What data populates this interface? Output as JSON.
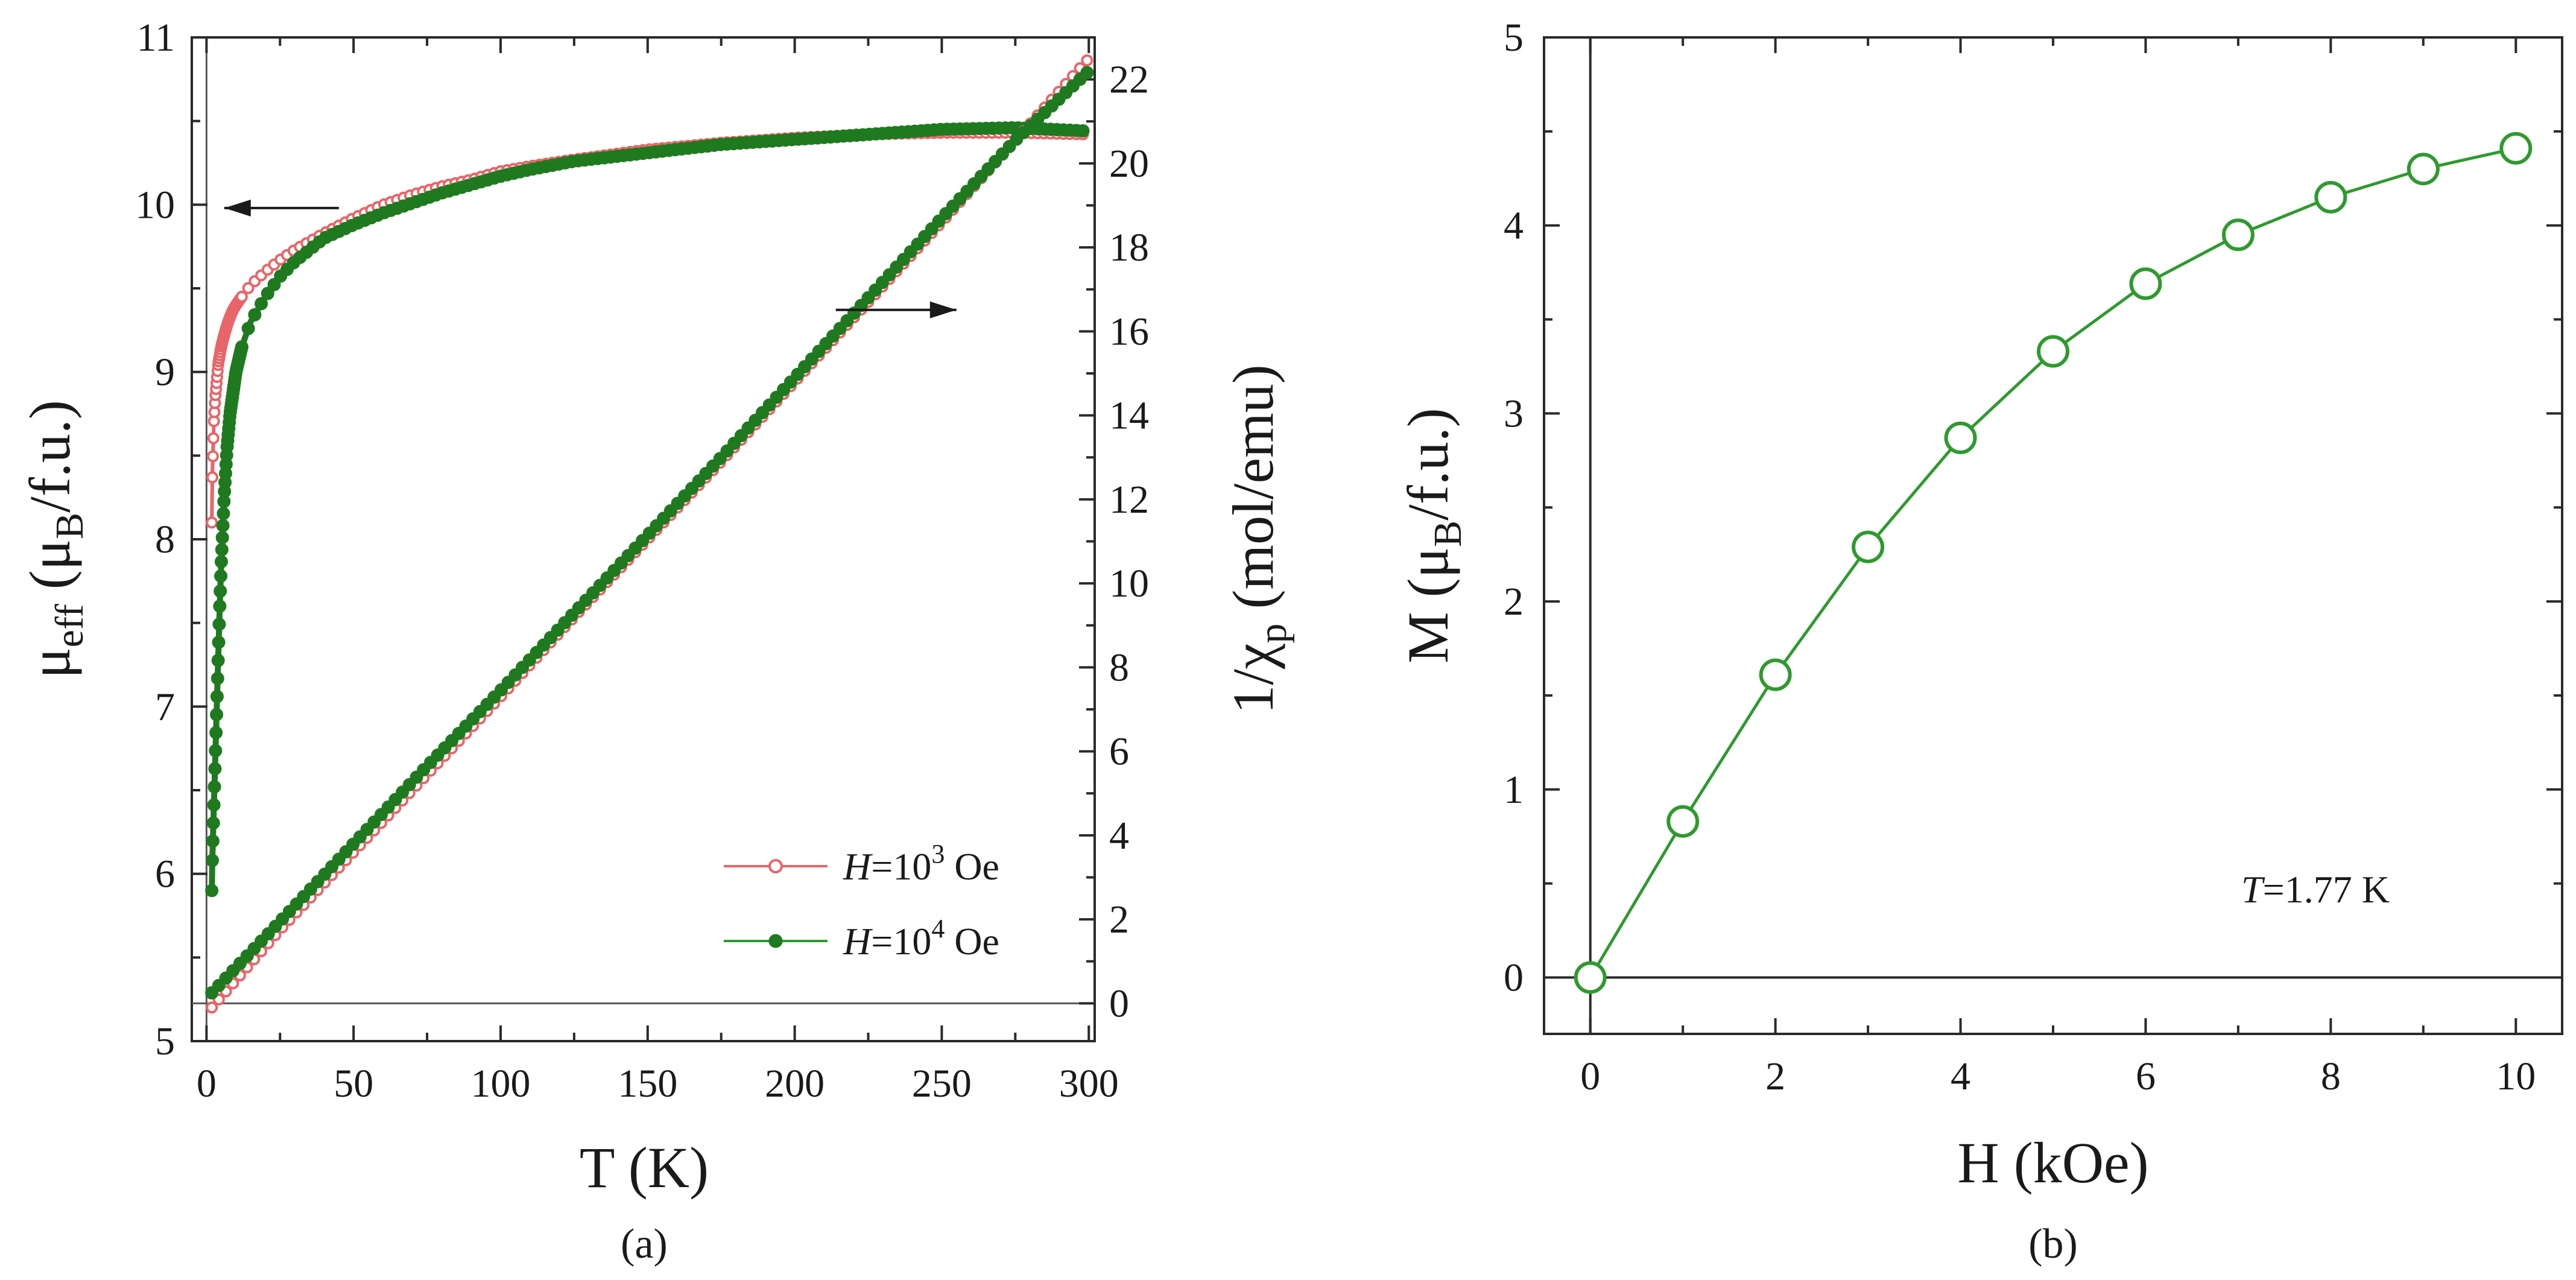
{
  "colors": {
    "axis": "#2a2a2a",
    "red_series": "#e8656a",
    "green_dark": "#1f7a1f",
    "green_light": "#2e9a2e"
  },
  "chart_data": [
    {
      "id": "a",
      "type": "scatter",
      "panel_label": "(a)",
      "xlabel": "T (K)",
      "ylabel_left": {
        "main": "μ",
        "sub": "eff",
        "rest_open": "  (μ",
        "rest_sub": "B",
        "rest_close": "/f.u.)"
      },
      "ylabel_right": {
        "main": "1/χ",
        "sub": "p",
        "rest": " (mol/emu)"
      },
      "xlim": [
        -5,
        302
      ],
      "xticks": [
        0,
        50,
        100,
        150,
        200,
        250,
        300
      ],
      "ylim_left": [
        5,
        11
      ],
      "yticks_left": [
        5,
        6,
        7,
        8,
        9,
        10,
        11
      ],
      "ylim_right": [
        -0.9,
        23
      ],
      "yticks_right": [
        0,
        2,
        4,
        6,
        8,
        10,
        12,
        14,
        16,
        18,
        20,
        22
      ],
      "annotations": [
        {
          "text": "arrow pointing left to left axis (μeff curves)",
          "at_x": 45,
          "at_y_left": 9.98,
          "direction": "left"
        },
        {
          "text": "arrow pointing right to right axis (1/χp curves)",
          "at_x": 255,
          "at_y_left": 9.4,
          "direction": "right"
        }
      ],
      "series": [
        {
          "name_prefix": "H",
          "name_eq": "=10",
          "name_sup": "3",
          "name_unit": " Oe",
          "marker": "open-circle",
          "color": "#e8656a",
          "axis": "left",
          "x": [
            1.8,
            2,
            2.5,
            3,
            3.5,
            4,
            5,
            6,
            7,
            8,
            9,
            10,
            12,
            15,
            20,
            25,
            30,
            40,
            50,
            60,
            70,
            80,
            90,
            100,
            110,
            125,
            150,
            175,
            200,
            225,
            250,
            275,
            300
          ],
          "y": [
            8.1,
            8.4,
            8.7,
            8.85,
            8.95,
            9.05,
            9.15,
            9.22,
            9.28,
            9.33,
            9.37,
            9.4,
            9.45,
            9.52,
            9.6,
            9.67,
            9.73,
            9.83,
            9.92,
            10.0,
            10.06,
            10.11,
            10.15,
            10.2,
            10.23,
            10.27,
            10.33,
            10.37,
            10.4,
            10.42,
            10.43,
            10.43,
            10.42
          ]
        },
        {
          "name_prefix": "H",
          "name_eq": "=10",
          "name_sup": "4",
          "name_unit": " Oe",
          "marker": "filled-circle",
          "color": "#1f7a1f",
          "axis": "left",
          "x": [
            1.8,
            2,
            2.5,
            3,
            3.5,
            4,
            4.5,
            5,
            6,
            7,
            8,
            10,
            12,
            15,
            20,
            25,
            30,
            40,
            50,
            60,
            70,
            80,
            90,
            100,
            110,
            125,
            150,
            175,
            200,
            225,
            250,
            275,
            300
          ],
          "y": [
            5.9,
            6.1,
            6.4,
            6.7,
            7.0,
            7.3,
            7.6,
            7.85,
            8.25,
            8.55,
            8.75,
            9.0,
            9.15,
            9.3,
            9.45,
            9.57,
            9.66,
            9.8,
            9.88,
            9.95,
            10.01,
            10.07,
            10.12,
            10.17,
            10.21,
            10.26,
            10.31,
            10.36,
            10.39,
            10.42,
            10.45,
            10.46,
            10.44
          ]
        },
        {
          "name": "H=10^3 Oe inverse susceptibility",
          "marker": "open-circle",
          "color": "#e8656a",
          "axis": "right",
          "x": [
            1.8,
            25,
            50,
            75,
            100,
            125,
            150,
            175,
            200,
            225,
            250,
            275,
            300
          ],
          "y": [
            -0.1,
            1.75,
            3.6,
            5.45,
            7.3,
            9.2,
            11.05,
            12.9,
            14.8,
            16.7,
            18.6,
            20.55,
            22.5
          ]
        },
        {
          "name": "H=10^4 Oe inverse susceptibility",
          "marker": "filled-circle",
          "color": "#1f7a1f",
          "axis": "right",
          "x": [
            1.8,
            25,
            50,
            75,
            100,
            125,
            150,
            175,
            200,
            225,
            250,
            275,
            300
          ],
          "y": [
            0.25,
            1.95,
            3.8,
            5.65,
            7.45,
            9.3,
            11.15,
            13.0,
            14.9,
            16.8,
            18.7,
            20.55,
            22.2
          ]
        }
      ]
    },
    {
      "id": "b",
      "type": "line",
      "panel_label": "(b)",
      "xlabel": "H  (kOe)",
      "ylabel": {
        "main": "M",
        "rest_open": " (μ",
        "rest_sub": "B",
        "rest_close": "/f.u.)"
      },
      "xlim": [
        -0.5,
        10.5
      ],
      "xticks": [
        0,
        2,
        4,
        6,
        8,
        10
      ],
      "ylim": [
        -0.3,
        5
      ],
      "yticks": [
        0,
        1,
        2,
        3,
        4,
        5
      ],
      "annotation": {
        "italic": "T",
        "rest": "=1.77 K"
      },
      "series": [
        {
          "name": "T=1.77 K",
          "marker": "open-circle",
          "color": "#2e9a2e",
          "x": [
            0,
            1,
            2,
            3,
            4,
            5,
            6,
            7,
            8,
            9,
            10
          ],
          "y": [
            0.0,
            0.83,
            1.61,
            2.29,
            2.87,
            3.33,
            3.69,
            3.95,
            4.15,
            4.3,
            4.41
          ]
        }
      ]
    }
  ]
}
